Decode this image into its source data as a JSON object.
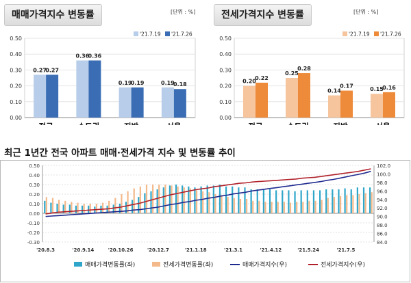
{
  "panel1": {
    "title": "매매가격지수 변동률",
    "unit": "[단위 : %]",
    "legend": [
      "'21.7.19",
      "'21.7.26"
    ],
    "colors": [
      "#b8cde9",
      "#3b6db5"
    ]
  },
  "panel2": {
    "title": "전세가격지수 변동률",
    "unit": "[단위 : %]",
    "legend": [
      "'21.7.19",
      "'21.7.26"
    ],
    "colors": [
      "#f7c59d",
      "#ee8b3b"
    ]
  },
  "bottom": {
    "title": "최근 1년간 전국 아파트 매매·전세가격 지수 및 변동률 추이",
    "legend": [
      "매매가격변동률(좌)",
      "전세가격변동률(좌)",
      "매매가격지수(우)",
      "전세가격지수(우)"
    ],
    "colors": {
      "sale_bar": "#2fa6c9",
      "jeonse_bar": "#f3b98a",
      "sale_index": "#1f2a8f",
      "jeonse_index": "#b0202a"
    }
  },
  "chart_data": [
    {
      "type": "bar",
      "title": "매매가격지수 변동률",
      "categories": [
        "전국",
        "수도권",
        "지방",
        "서울"
      ],
      "series": [
        {
          "name": "'21.7.19",
          "values": [
            0.27,
            0.36,
            0.19,
            0.19
          ]
        },
        {
          "name": "'21.7.26",
          "values": [
            0.27,
            0.36,
            0.19,
            0.18
          ]
        }
      ],
      "ylim": [
        0,
        0.5
      ],
      "yticks": [
        "0.00",
        "0.10",
        "0.20",
        "0.30",
        "0.40",
        "0.50"
      ],
      "labels": [
        [
          "0.27",
          "0.36",
          "0.19",
          "0.19"
        ],
        [
          "0.27",
          "0.36",
          "0.19",
          "0.18"
        ]
      ]
    },
    {
      "type": "bar",
      "title": "전세가격지수 변동률",
      "categories": [
        "전국",
        "수도권",
        "지방",
        "서울"
      ],
      "series": [
        {
          "name": "'21.7.19",
          "values": [
            0.2,
            0.25,
            0.14,
            0.15
          ]
        },
        {
          "name": "'21.7.26",
          "values": [
            0.22,
            0.28,
            0.17,
            0.16
          ]
        }
      ],
      "ylim": [
        0,
        0.5
      ],
      "yticks": [
        "0.00",
        "0.10",
        "0.20",
        "0.30",
        "0.40",
        "0.50"
      ],
      "labels": [
        [
          "0.20",
          "0.25",
          "0.14",
          "0.15"
        ],
        [
          "0.22",
          "0.28",
          "0.17",
          "0.16"
        ]
      ]
    },
    {
      "type": "bar",
      "title": "최근 1년간 전국 아파트 매매·전세가격 지수 및 변동률 추이",
      "x_ticks": [
        "'20.8.3",
        "'20.9.14",
        "'20.10.26",
        "'20.12.7",
        "'21.1.18",
        "'21.3.1",
        "'21.4.12",
        "'21.5.24",
        "'21.7.5"
      ],
      "ylim_left": [
        -0.3,
        0.5
      ],
      "yticks_left": [
        "0.50",
        "0.40",
        "0.30",
        "0.20",
        "0.10",
        "0.00",
        "-0.10",
        "-0.20",
        "-0.30"
      ],
      "ylim_right": [
        84,
        102
      ],
      "yticks_right": [
        "102.0",
        "100.0",
        "98.0",
        "96.0",
        "94.0",
        "92.0",
        "90.0",
        "88.0",
        "86.0",
        "84.0"
      ],
      "series": [
        {
          "name": "매매가격변동률(좌)",
          "kind": "bar",
          "values": [
            0.13,
            0.11,
            0.1,
            0.09,
            0.09,
            0.08,
            0.08,
            0.08,
            0.07,
            0.08,
            0.08,
            0.09,
            0.1,
            0.12,
            0.14,
            0.17,
            0.21,
            0.23,
            0.25,
            0.27,
            0.29,
            0.3,
            0.29,
            0.28,
            0.27,
            0.28,
            0.29,
            0.29,
            0.3,
            0.28,
            0.28,
            0.27,
            0.27,
            0.25,
            0.25,
            0.25,
            0.25,
            0.24,
            0.24,
            0.24,
            0.23,
            0.24,
            0.24,
            0.24,
            0.24,
            0.25,
            0.25,
            0.25,
            0.26,
            0.25,
            0.27,
            0.27,
            0.27
          ]
        },
        {
          "name": "전세가격변동률(좌)",
          "kind": "bar",
          "values": [
            0.17,
            0.16,
            0.14,
            0.13,
            0.12,
            0.11,
            0.1,
            0.1,
            0.1,
            0.11,
            0.13,
            0.16,
            0.2,
            0.23,
            0.26,
            0.28,
            0.3,
            0.3,
            0.3,
            0.3,
            0.29,
            0.28,
            0.27,
            0.26,
            0.24,
            0.23,
            0.22,
            0.2,
            0.19,
            0.17,
            0.16,
            0.15,
            0.15,
            0.13,
            0.13,
            0.12,
            0.12,
            0.12,
            0.12,
            0.11,
            0.12,
            0.12,
            0.13,
            0.13,
            0.14,
            0.16,
            0.17,
            0.18,
            0.19,
            0.19,
            0.2,
            0.21,
            0.22
          ]
        },
        {
          "name": "매매가격지수(우)",
          "kind": "line",
          "values": [
            90.0,
            90.1,
            90.2,
            90.3,
            90.4,
            90.5,
            90.6,
            90.7,
            90.8,
            90.9,
            91.0,
            91.1,
            91.2,
            91.3,
            91.5,
            91.6,
            91.8,
            92.0,
            92.2,
            92.5,
            92.8,
            93.0,
            93.3,
            93.5,
            93.8,
            94.0,
            94.3,
            94.5,
            94.8,
            95.0,
            95.3,
            95.5,
            95.7,
            96.0,
            96.2,
            96.4,
            96.6,
            96.8,
            97.0,
            97.2,
            97.4,
            97.6,
            97.8,
            98.0,
            98.2,
            98.5,
            98.7,
            99.0,
            99.3,
            99.6,
            99.9,
            100.2,
            100.6
          ]
        },
        {
          "name": "전세가격지수(우)",
          "kind": "line",
          "values": [
            90.6,
            90.8,
            91.0,
            91.1,
            91.2,
            91.3,
            91.4,
            91.5,
            91.6,
            91.7,
            91.8,
            92.0,
            92.2,
            92.5,
            92.8,
            93.1,
            93.5,
            93.9,
            94.3,
            94.7,
            95.1,
            95.4,
            95.7,
            96.0,
            96.3,
            96.5,
            96.7,
            97.0,
            97.2,
            97.4,
            97.6,
            97.8,
            97.9,
            98.1,
            98.2,
            98.3,
            98.4,
            98.5,
            98.6,
            98.7,
            98.8,
            99.0,
            99.1,
            99.2,
            99.4,
            99.6,
            99.8,
            100.0,
            100.2,
            100.4,
            100.6,
            100.9,
            101.2
          ]
        }
      ]
    }
  ]
}
